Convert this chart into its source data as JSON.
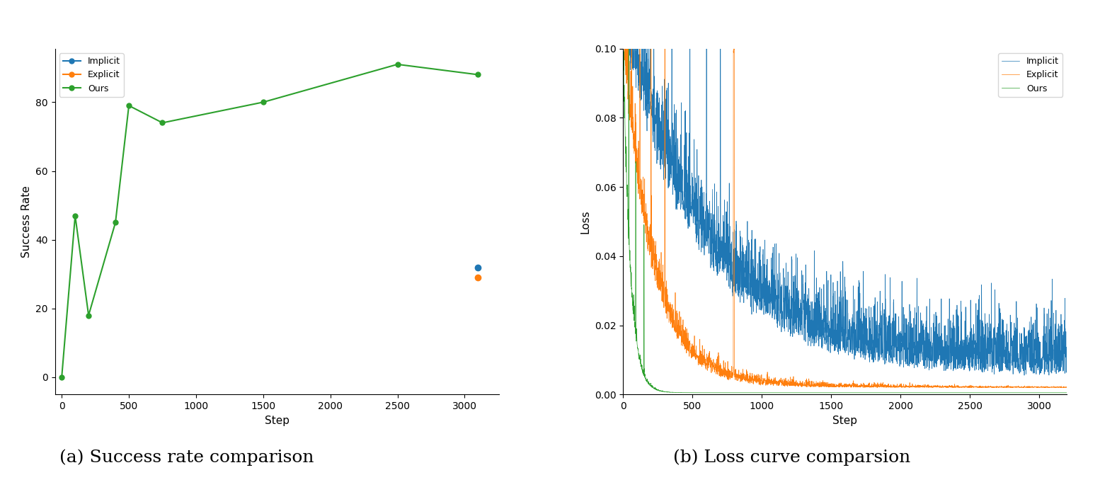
{
  "success_ours_x": [
    0,
    100,
    200,
    400,
    500,
    750,
    1500,
    2500,
    3100
  ],
  "success_ours_y": [
    0,
    47,
    18,
    45,
    79,
    74,
    80,
    91,
    88
  ],
  "success_implicit_x": [
    3100
  ],
  "success_implicit_y": [
    32
  ],
  "success_explicit_x": [
    3100
  ],
  "success_explicit_y": [
    29
  ],
  "success_xlabel": "Step",
  "success_ylabel": "Success Rate",
  "loss_xlabel": "Step",
  "loss_ylabel": "Loss",
  "loss_ylim": [
    0.0,
    0.1
  ],
  "loss_xlim": [
    0,
    3200
  ],
  "caption_left": "(a) Success rate comparison",
  "caption_right": "(b) Loss curve comparsion",
  "color_implicit": "#1f77b4",
  "color_explicit": "#ff7f0e",
  "color_ours": "#2ca02c",
  "legend_labels": [
    "Implicit",
    "Explicit",
    "Ours"
  ],
  "caption_fontsize": 18
}
